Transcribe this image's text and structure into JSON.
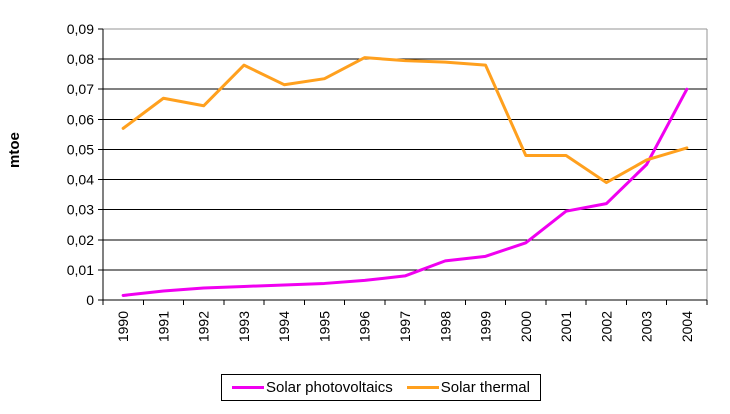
{
  "chart_data": {
    "type": "line",
    "title": "",
    "xlabel": "",
    "ylabel": "mtoe",
    "categories": [
      "1990",
      "1991",
      "1992",
      "1993",
      "1994",
      "1995",
      "1996",
      "1997",
      "1998",
      "1999",
      "2000",
      "2001",
      "2002",
      "2003",
      "2004"
    ],
    "series": [
      {
        "name": "Solar photovoltaics",
        "color": "#F000F0",
        "values": [
          0.0015,
          0.003,
          0.004,
          0.0045,
          0.005,
          0.0055,
          0.0065,
          0.008,
          0.013,
          0.0145,
          0.019,
          0.0295,
          0.032,
          0.045,
          0.07
        ]
      },
      {
        "name": "Solar thermal",
        "color": "#FFA01E",
        "values": [
          0.057,
          0.067,
          0.0645,
          0.078,
          0.0715,
          0.0735,
          0.0805,
          0.0795,
          0.079,
          0.078,
          0.048,
          0.048,
          0.039,
          0.0465,
          0.0505
        ]
      }
    ],
    "ylim": [
      0,
      0.09
    ],
    "ytick_step": 0.01,
    "ytick_labels": [
      "0",
      "0,01",
      "0,02",
      "0,03",
      "0,04",
      "0,05",
      "0,06",
      "0,07",
      "0,08",
      "0,09"
    ],
    "decimal_separator": ",",
    "grid": true,
    "gridline_color": "#000000",
    "plot_border_color": "#969696",
    "x_label_rotation": -90,
    "legend_position": "bottom"
  }
}
